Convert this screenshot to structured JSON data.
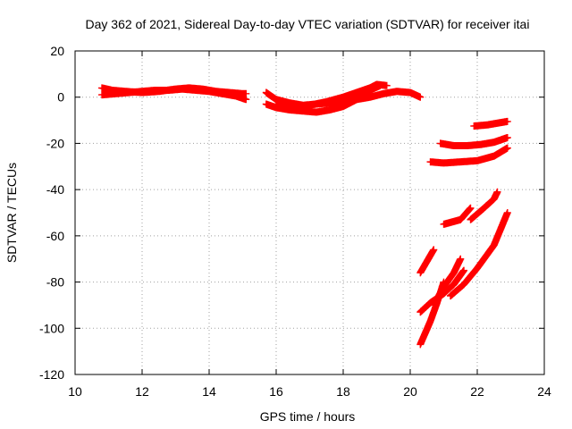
{
  "chart_data": {
    "type": "scatter",
    "title": "Day 362 of 2021, Sidereal Day-to-day VTEC variation (SDTVAR) for receiver itai",
    "xlabel": "GPS time / hours",
    "ylabel": "SDTVAR / TECUs",
    "xlim": [
      10,
      24
    ],
    "ylim": [
      -120,
      20
    ],
    "xticks": [
      "10",
      "12",
      "14",
      "16",
      "18",
      "20",
      "22",
      "24"
    ],
    "yticks": [
      "20",
      "0",
      "-20",
      "-40",
      "-60",
      "-80",
      "-100",
      "-120"
    ],
    "grid": true,
    "legend": "none",
    "marker": "plus",
    "color": "#ff0000",
    "series": [
      {
        "x": [
          10.8,
          11.1,
          11.5,
          12.0,
          12.5,
          13.0,
          13.4,
          13.8,
          14.2,
          14.6,
          15.0,
          15.1
        ],
        "values": [
          4,
          3,
          2.5,
          2,
          2.5,
          3.5,
          4,
          3.5,
          2.5,
          2,
          1.5,
          1.5
        ]
      },
      {
        "x": [
          10.8,
          11.2,
          11.6,
          12.0,
          12.4,
          12.8,
          13.2,
          13.6,
          14.0,
          14.4,
          14.8,
          15.1
        ],
        "values": [
          1,
          1.5,
          2,
          2.5,
          3,
          3,
          3.5,
          3,
          2.5,
          1.5,
          0.5,
          -1
        ]
      },
      {
        "x": [
          15.7,
          16.0,
          16.4,
          16.8,
          17.2,
          17.6,
          18.0,
          18.4,
          18.8,
          19.2,
          19.6,
          20.0,
          20.3
        ],
        "values": [
          2,
          -1,
          -2.5,
          -3.5,
          -3,
          -2.5,
          -2,
          -1,
          0,
          1.5,
          2.5,
          2,
          0
        ]
      },
      {
        "x": [
          15.7,
          16.0,
          16.4,
          16.8,
          17.2,
          17.6,
          18.0,
          18.4,
          18.8,
          19.1
        ],
        "values": [
          -3,
          -4.5,
          -5.5,
          -6,
          -6.5,
          -5.5,
          -4,
          -1,
          3,
          5
        ]
      },
      {
        "x": [
          16.0,
          16.5,
          17.0,
          17.5,
          18.0,
          18.4,
          18.8,
          19.0,
          19.3
        ],
        "values": [
          -3,
          -4,
          -3.5,
          -2,
          0,
          2,
          4,
          5.5,
          5
        ]
      },
      {
        "x": [
          20.6,
          21.0,
          21.5,
          22.0,
          22.5,
          22.9
        ],
        "values": [
          -28,
          -28.5,
          -28,
          -27.5,
          -25.5,
          -22
        ]
      },
      {
        "x": [
          20.9,
          21.3,
          21.7,
          22.1,
          22.5,
          22.9
        ],
        "values": [
          -20,
          -21,
          -21,
          -20.5,
          -19.5,
          -17.5
        ]
      },
      {
        "x": [
          21.9,
          22.3,
          22.9
        ],
        "values": [
          -12.5,
          -12,
          -10.5
        ]
      },
      {
        "x": [
          21.8,
          22.2,
          22.5,
          22.6
        ],
        "values": [
          -53,
          -48,
          -44,
          -41
        ]
      },
      {
        "x": [
          21.0,
          21.5,
          21.8
        ],
        "values": [
          -55,
          -53,
          -48
        ]
      },
      {
        "x": [
          20.3,
          20.5,
          20.7
        ],
        "values": [
          -76,
          -71,
          -66
        ]
      },
      {
        "x": [
          20.3,
          20.6,
          20.8,
          21.0
        ],
        "values": [
          -107,
          -97,
          -89,
          -80
        ]
      },
      {
        "x": [
          20.3,
          20.6,
          21.0,
          21.3,
          21.6
        ],
        "values": [
          -93,
          -89,
          -85,
          -81,
          -75
        ]
      },
      {
        "x": [
          20.7,
          21.0,
          21.3,
          21.5
        ],
        "values": [
          -90,
          -82,
          -76,
          -70
        ]
      },
      {
        "x": [
          21.2,
          21.6,
          22.0,
          22.5,
          22.9
        ],
        "values": [
          -86,
          -81,
          -74,
          -64,
          -50
        ]
      }
    ]
  }
}
